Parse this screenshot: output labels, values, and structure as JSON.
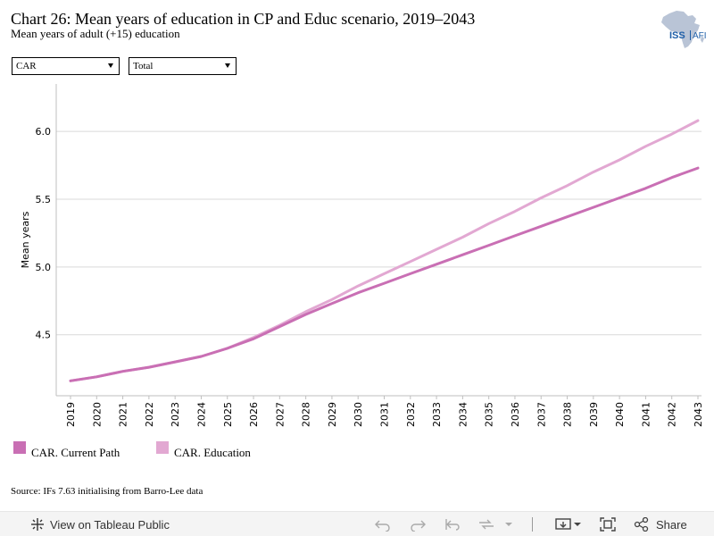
{
  "header": {
    "title": "Chart 26: Mean years of education in CP and Educ scenario, 2019–2043",
    "subtitle": "Mean years of adult (+15) education"
  },
  "logo": {
    "text": "ISS",
    "suffix": "AFI"
  },
  "filters": {
    "country": {
      "value": "CAR"
    },
    "type": {
      "value": "Total"
    }
  },
  "chart_data": {
    "type": "line",
    "ylabel": "Mean years",
    "ylim": [
      4.05,
      6.35
    ],
    "yticks": [
      4.5,
      5.0,
      5.5,
      6.0
    ],
    "ytick_labels": [
      "4.5",
      "5.0",
      "5.5",
      "6.0"
    ],
    "x": [
      2019,
      2020,
      2021,
      2022,
      2023,
      2024,
      2025,
      2026,
      2027,
      2028,
      2029,
      2030,
      2031,
      2032,
      2033,
      2034,
      2035,
      2036,
      2037,
      2038,
      2039,
      2040,
      2041,
      2042,
      2043
    ],
    "grid": true,
    "series": [
      {
        "name": "CAR. Current Path",
        "color": "#c96fb4",
        "values": [
          4.16,
          4.19,
          4.23,
          4.26,
          4.3,
          4.34,
          4.4,
          4.47,
          4.56,
          4.65,
          4.73,
          4.81,
          4.88,
          4.95,
          5.02,
          5.09,
          5.16,
          5.23,
          5.3,
          5.37,
          5.44,
          5.51,
          5.58,
          5.66,
          5.73
        ]
      },
      {
        "name": "CAR. Education",
        "color": "#e2a8d2",
        "values": [
          4.16,
          4.19,
          4.23,
          4.26,
          4.3,
          4.34,
          4.4,
          4.48,
          4.57,
          4.67,
          4.76,
          4.86,
          4.95,
          5.04,
          5.13,
          5.22,
          5.32,
          5.41,
          5.51,
          5.6,
          5.7,
          5.79,
          5.89,
          5.98,
          6.08
        ]
      }
    ]
  },
  "legend": {
    "items": [
      {
        "label": "CAR. Current Path",
        "color": "#c96fb4"
      },
      {
        "label": "CAR. Education",
        "color": "#e2a8d2"
      }
    ]
  },
  "source": "Source: IFs 7.63 initialising from Barro-Lee data",
  "footer": {
    "view_label": "View on Tableau Public",
    "share_label": "Share"
  }
}
